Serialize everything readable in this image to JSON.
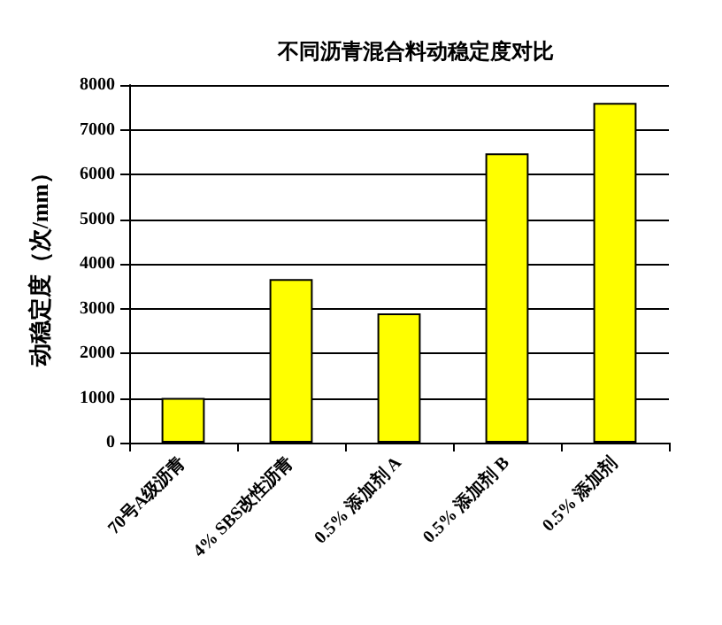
{
  "chart_data": {
    "type": "bar",
    "title": "不同沥青混合料动稳定度对比",
    "ylabel": "动稳定度（次/mm）",
    "categories": [
      "70号A级沥青",
      "4% SBS改性沥青",
      "0.5% 添加剂 A",
      "0.5% 添加剂 B",
      "0.5% 添加剂"
    ],
    "values": [
      1000,
      3660,
      2890,
      6470,
      7600
    ],
    "color": "#ffff00",
    "ylim": [
      0,
      8000
    ],
    "yticks": [
      0,
      1000,
      2000,
      3000,
      4000,
      5000,
      6000,
      7000,
      8000
    ],
    "grid": "y"
  }
}
